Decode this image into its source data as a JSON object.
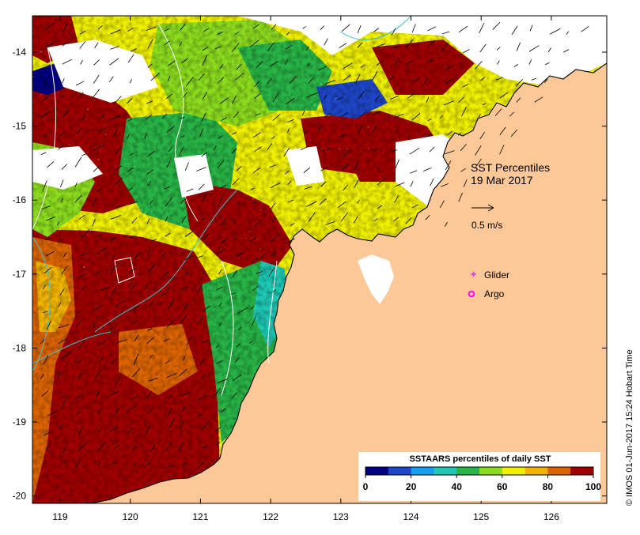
{
  "map": {
    "title": "SST Percentiles",
    "date": "19 Mar 2017",
    "vector_scale_label": "0.5 m/s",
    "legend_markers": [
      {
        "label": "Glider",
        "color": "#e040e0"
      },
      {
        "label": "Argo",
        "color": "#ff00ff"
      }
    ],
    "credit": "© IMOS 01-Jun-2017 15:24 Hobart Time",
    "colorbar": {
      "title": "SSTAARS percentiles of daily SST",
      "ticks": [
        "0",
        "20",
        "40",
        "60",
        "80",
        "100"
      ],
      "colors": [
        "#000080",
        "#1e46c8",
        "#14a0f0",
        "#1ec8b4",
        "#28b446",
        "#8cdc1e",
        "#f0f000",
        "#f0b400",
        "#dc6400",
        "#a00000"
      ]
    },
    "x_ticks": [
      "119",
      "120",
      "121",
      "122",
      "123",
      "124",
      "125",
      "126"
    ],
    "y_ticks": [
      "-14",
      "-15",
      "-16",
      "-17",
      "-18",
      "-19",
      "-20"
    ],
    "colors": {
      "land": "#fcc898",
      "nodata": "#ffffff",
      "frame": "#000000",
      "contour": "#ffffff",
      "bathy": "#40c0c8"
    }
  }
}
